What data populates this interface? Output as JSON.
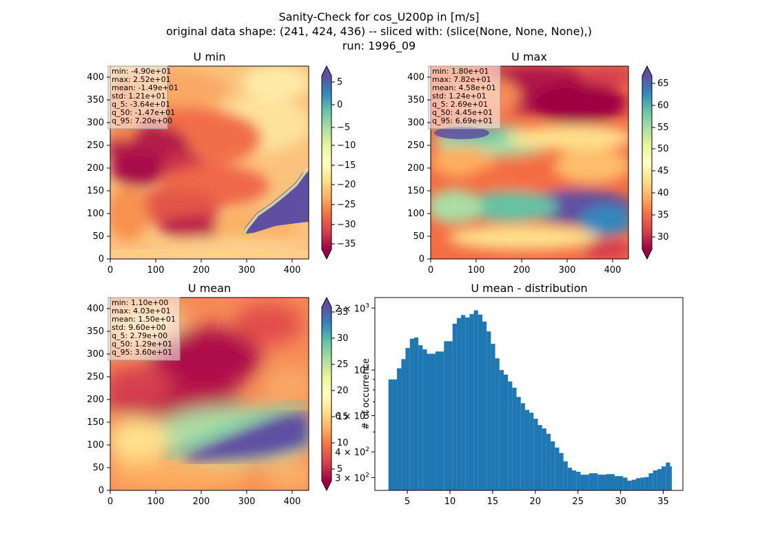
{
  "figure": {
    "suptitle_lines": [
      "Sanity-Check for cos_U200p in [m/s]",
      "original data shape: (241, 424, 436) -- sliced with: (slice(None, None, None),)",
      "run: 1996_09"
    ]
  },
  "chart_data": [
    {
      "type": "heatmap",
      "title": "U min",
      "xlim": [
        0,
        436
      ],
      "ylim": [
        0,
        424
      ],
      "xticks": [
        "0",
        "100",
        "200",
        "300",
        "400"
      ],
      "yticks": [
        "0",
        "50",
        "100",
        "150",
        "200",
        "250",
        "300",
        "350",
        "400"
      ],
      "colormap": "Spectral",
      "colorbar": {
        "range": [
          -37.5,
          7.9
        ],
        "ticks": [
          "5",
          "0",
          "−5",
          "−10",
          "−15",
          "−20",
          "−25",
          "−30",
          "−35"
        ],
        "extend": "both"
      },
      "stats_box": [
        "min: -4.90e+01",
        "max: 2.52e+01",
        "mean: -1.49e+01",
        "std: 1.21e+01",
        "q_5: -3.64e+01",
        "q_50: -1.47e+01",
        "q_95: 7.20e+00"
      ]
    },
    {
      "type": "heatmap",
      "title": "U max",
      "xlim": [
        0,
        436
      ],
      "ylim": [
        0,
        424
      ],
      "xticks": [
        "0",
        "100",
        "200",
        "300",
        "400"
      ],
      "yticks": [
        "0",
        "50",
        "100",
        "150",
        "200",
        "250",
        "300",
        "350",
        "400"
      ],
      "colormap": "Spectral",
      "colorbar": {
        "range": [
          26.9,
          66.9
        ],
        "ticks": [
          "65",
          "60",
          "55",
          "50",
          "45",
          "40",
          "35",
          "30"
        ],
        "extend": "both"
      },
      "stats_box": [
        "min: 1.80e+01",
        "max: 7.82e+01",
        "mean: 4.58e+01",
        "std: 1.24e+01",
        "q_5: 2.69e+01",
        "q_50: 4.45e+01",
        "q_95: 6.69e+01"
      ]
    },
    {
      "type": "heatmap",
      "title": "U mean",
      "xlim": [
        0,
        436
      ],
      "ylim": [
        0,
        424
      ],
      "xticks": [
        "0",
        "100",
        "200",
        "300",
        "400"
      ],
      "yticks": [
        "0",
        "50",
        "100",
        "150",
        "200",
        "250",
        "300",
        "350",
        "400"
      ],
      "colormap": "Spectral",
      "colorbar": {
        "range": [
          2.8,
          36.0
        ],
        "ticks": [
          "35",
          "30",
          "25",
          "20",
          "15",
          "10",
          "5"
        ],
        "extend": "both"
      },
      "stats_box": [
        "min: 1.10e+00",
        "max: 4.03e+01",
        "mean: 1.50e+01",
        "std: 9.60e+00",
        "q_5: 2.79e+00",
        "q_50: 1.29e+01",
        "q_95: 3.60e+01"
      ]
    },
    {
      "type": "bar",
      "title": "U mean - distribution",
      "ylabel": "# of occurrence",
      "xlabel": "",
      "xlim": [
        1.2,
        37.3
      ],
      "ylim": [
        260,
        2250
      ],
      "yscale": "log",
      "bar_color": "#1f77b4",
      "xticks": [
        5,
        10,
        15,
        20,
        25,
        30,
        35
      ],
      "xtick_labels": [
        "5",
        "10",
        "15",
        "20",
        "25",
        "30",
        "35"
      ],
      "yticks_major": [
        {
          "value": 300,
          "base": "3 × 10",
          "exp": "2"
        },
        {
          "value": 400,
          "base": "4 × 10",
          "exp": "2"
        },
        {
          "value": 600,
          "base": "6 × 10",
          "exp": "2"
        },
        {
          "value": 1000,
          "base": "10",
          "exp": "3"
        },
        {
          "value": 2000,
          "base": "2 × 10",
          "exp": "3"
        }
      ],
      "yticks_minor": [
        500,
        700,
        800,
        900
      ],
      "bins": [
        2.79,
        3.79,
        4.3,
        4.79,
        5.3,
        5.8,
        6.3,
        6.8,
        7.3,
        8.3,
        9.3,
        10.3,
        10.8,
        11.3,
        11.8,
        12.3,
        12.8,
        13.3,
        13.8,
        14.3,
        14.8,
        15.3,
        15.8,
        16.3,
        16.8,
        17.3,
        17.8,
        18.3,
        18.8,
        19.3,
        19.8,
        20.3,
        20.8,
        21.3,
        21.8,
        22.3,
        22.8,
        23.3,
        23.8,
        24.3,
        24.8,
        25.3,
        26.3,
        27.3,
        28.3,
        29.3,
        30.3,
        30.8,
        31.3,
        31.8,
        32.3,
        32.8,
        33.3,
        33.8,
        34.3,
        34.8,
        35.3,
        35.8,
        36.0
      ],
      "counts": [
        900,
        1020,
        1130,
        1280,
        1420,
        1440,
        1320,
        1260,
        1200,
        1230,
        1380,
        1680,
        1790,
        1850,
        1800,
        1870,
        1950,
        1860,
        1720,
        1540,
        1340,
        1140,
        1000,
        950,
        880,
        820,
        740,
        690,
        640,
        620,
        580,
        540,
        520,
        490,
        450,
        420,
        395,
        360,
        335,
        325,
        320,
        310,
        315,
        310,
        312,
        305,
        300,
        290,
        293,
        298,
        300,
        302,
        315,
        325,
        330,
        340,
        355,
        340
      ]
    }
  ]
}
